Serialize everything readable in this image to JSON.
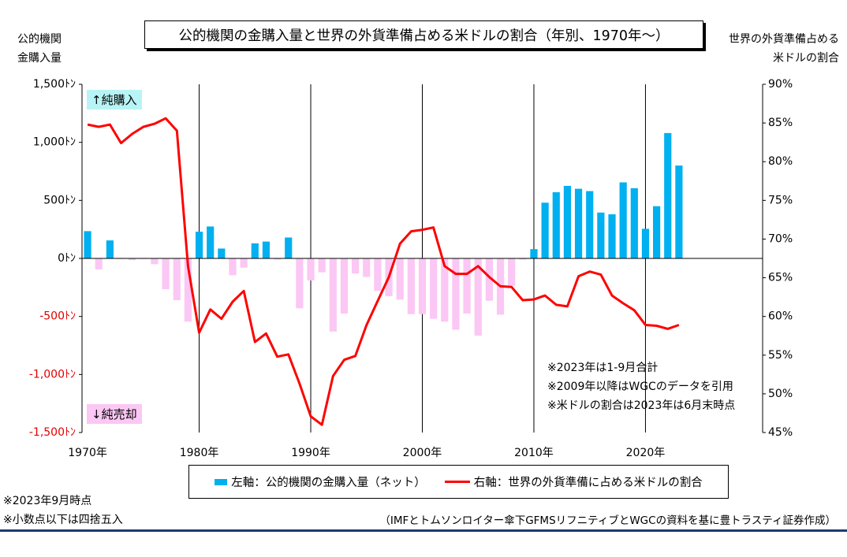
{
  "chart_data": {
    "type": "bar+line",
    "title": "公的機関の金購入量と世界の外貨準備占める米ドルの割合（年別、1970年～）",
    "left_axis_title": [
      "公的機関",
      "金購入量"
    ],
    "right_axis_title": [
      "世界の外貨準備占める",
      "米ドルの割合"
    ],
    "left_ylim": [
      -1500,
      1500
    ],
    "left_ticks": [
      {
        "value": 1500,
        "label": "1,500ﾄﾝ"
      },
      {
        "value": 1000,
        "label": "1,000ﾄﾝ"
      },
      {
        "value": 500,
        "label": "500ﾄﾝ"
      },
      {
        "value": 0,
        "label": "0ﾄﾝ"
      },
      {
        "value": -500,
        "label": "-500ﾄﾝ"
      },
      {
        "value": -1000,
        "label": "-1,000ﾄﾝ"
      },
      {
        "value": -1500,
        "label": "-1,500ﾄﾝ"
      }
    ],
    "right_ylim": [
      45,
      90
    ],
    "right_ticks": [
      "90%",
      "85%",
      "80%",
      "75%",
      "70%",
      "65%",
      "60%",
      "55%",
      "50%",
      "45%"
    ],
    "x_ticks": [
      {
        "year": 1970,
        "label": "1970年"
      },
      {
        "year": 1980,
        "label": "1980年"
      },
      {
        "year": 1990,
        "label": "1990年"
      },
      {
        "year": 2000,
        "label": "2000年"
      },
      {
        "year": 2010,
        "label": "2010年"
      },
      {
        "year": 2020,
        "label": "2020年"
      }
    ],
    "xlim": [
      1969.5,
      2030.5
    ],
    "bar_colors": {
      "positive": "#00b0f0",
      "negative": "#fbc7f4"
    },
    "line_color": "#ff0000",
    "series": [
      {
        "name": "左軸：公的機関の金購入量（ネット）",
        "axis": "left",
        "kind": "bar",
        "x": [
          1970,
          1971,
          1972,
          1973,
          1974,
          1975,
          1976,
          1977,
          1978,
          1979,
          1980,
          1981,
          1982,
          1983,
          1984,
          1985,
          1986,
          1987,
          1988,
          1989,
          1990,
          1991,
          1992,
          1993,
          1994,
          1995,
          1996,
          1997,
          1998,
          1999,
          2000,
          2001,
          2002,
          2003,
          2004,
          2005,
          2006,
          2007,
          2008,
          2009,
          2010,
          2011,
          2012,
          2013,
          2014,
          2015,
          2016,
          2017,
          2018,
          2019,
          2020,
          2021,
          2022,
          2023
        ],
        "values": [
          235,
          -95,
          155,
          -5,
          -15,
          -5,
          -50,
          -265,
          -360,
          -545,
          230,
          275,
          85,
          -145,
          -80,
          130,
          145,
          -10,
          180,
          -430,
          -190,
          -120,
          -630,
          -475,
          -130,
          -160,
          -280,
          -325,
          -355,
          -480,
          -480,
          -520,
          -545,
          -615,
          -475,
          -665,
          -365,
          -485,
          -235,
          -10,
          80,
          480,
          570,
          625,
          600,
          580,
          395,
          380,
          655,
          605,
          255,
          450,
          1080,
          800
        ]
      },
      {
        "name": "右軸：世界の外貨準備に占める米ドルの割合",
        "axis": "right",
        "kind": "line",
        "x": [
          1970,
          1971,
          1972,
          1973,
          1974,
          1975,
          1976,
          1977,
          1978,
          1979,
          1980,
          1981,
          1982,
          1983,
          1984,
          1985,
          1986,
          1987,
          1988,
          1989,
          1990,
          1991,
          1992,
          1993,
          1994,
          1995,
          1996,
          1997,
          1998,
          1999,
          2000,
          2001,
          2002,
          2003,
          2004,
          2005,
          2006,
          2007,
          2008,
          2009,
          2010,
          2011,
          2012,
          2013,
          2014,
          2015,
          2016,
          2017,
          2018,
          2019,
          2020,
          2021,
          2022,
          2023
        ],
        "values": [
          84.8,
          84.5,
          84.8,
          82.4,
          83.6,
          84.5,
          84.9,
          85.6,
          84.0,
          66.5,
          57.9,
          60.9,
          59.7,
          61.9,
          63.3,
          56.7,
          57.8,
          54.8,
          55.1,
          51.3,
          47.1,
          46.0,
          52.3,
          54.4,
          54.9,
          58.9,
          62.0,
          65.1,
          69.4,
          71.0,
          71.2,
          71.5,
          66.5,
          65.5,
          65.5,
          66.5,
          65.1,
          63.9,
          63.8,
          62.1,
          62.2,
          62.7,
          61.5,
          61.3,
          65.2,
          65.8,
          65.4,
          62.7,
          61.7,
          60.8,
          58.9,
          58.8,
          58.4,
          58.9
        ]
      }
    ],
    "annotation_buy": "↑純購入",
    "annotation_sell": "↓純売却",
    "notes": [
      "※2023年は1-9月合計",
      "※2009年以降はWGCのデータを引用",
      "※米ドルの割合は2023年は6月末時点"
    ]
  },
  "footnotes": [
    "※2023年9月時点",
    "※小数点以下は四捨五入"
  ],
  "source": "（IMFとトムソンロイター傘下GFMSリフニティブとWGCの資料を基に豊トラスティ証券作成）"
}
